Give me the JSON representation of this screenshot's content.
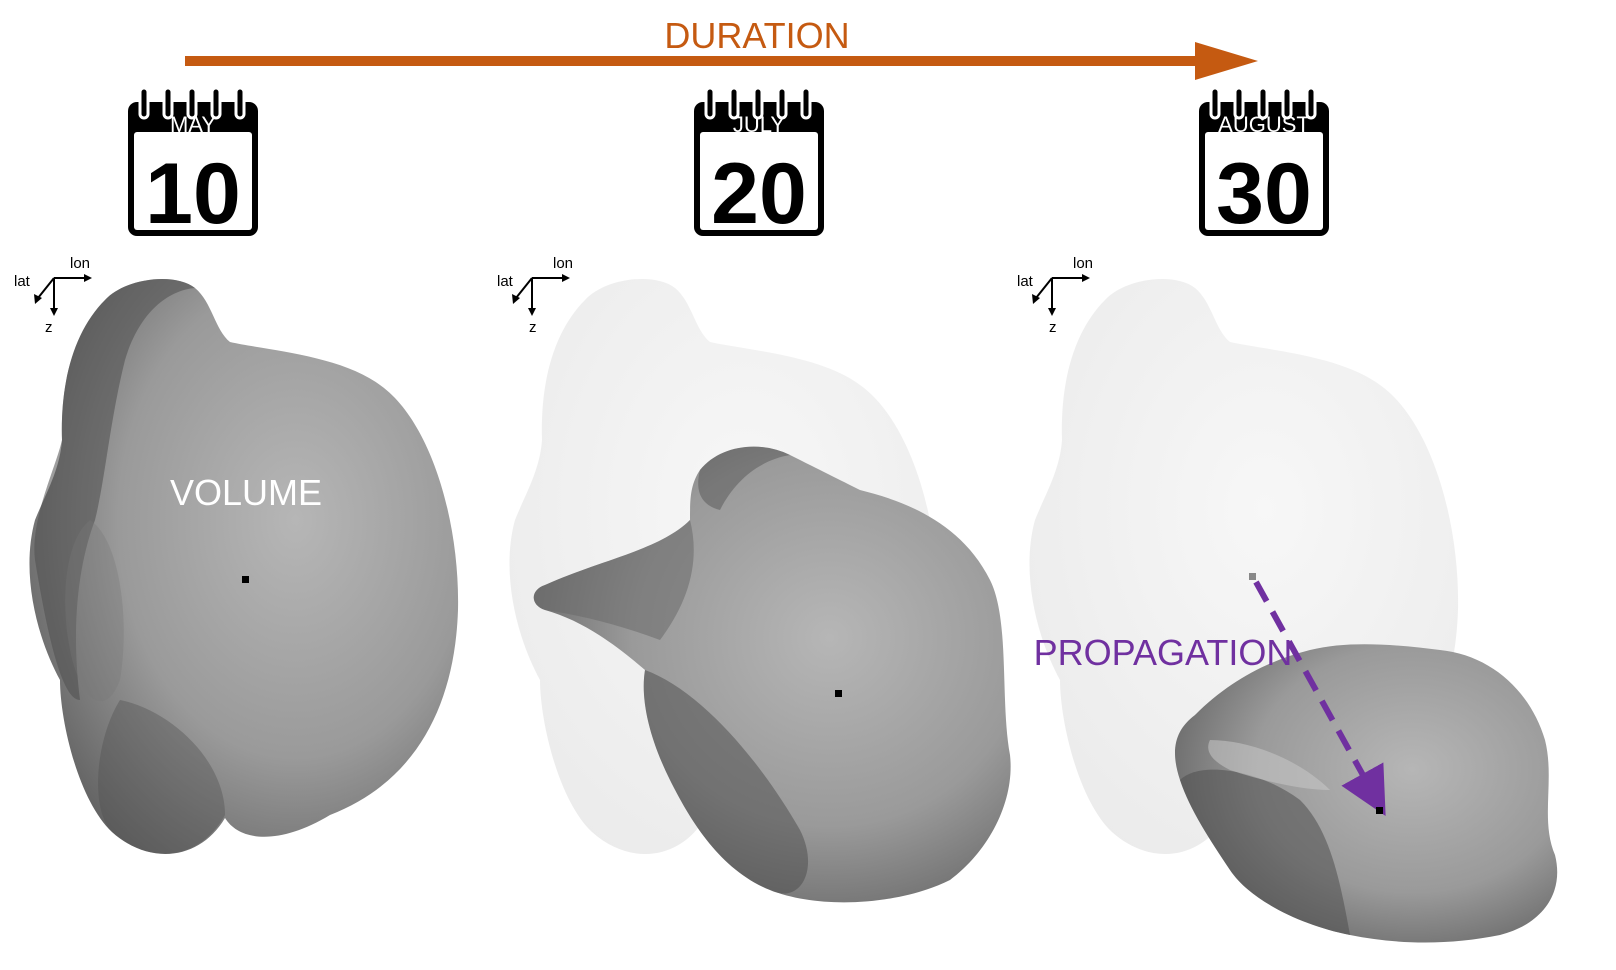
{
  "duration_label": "DURATION",
  "volume_label": "VOLUME",
  "propagation_label": "PROPAGATION",
  "colors": {
    "duration_arrow": "#c55a11",
    "propagation": "#7030a0",
    "blob_dark": "#5e5e5e",
    "blob_light": "#a9a9a9",
    "ghost": "#f0f0f0"
  },
  "calendars": [
    {
      "month": "MAY",
      "day": "10"
    },
    {
      "month": "JULY",
      "day": "20"
    },
    {
      "month": "AUGUST",
      "day": "30"
    }
  ],
  "axes": {
    "lon": "lon",
    "lat": "lat",
    "z": "z"
  }
}
